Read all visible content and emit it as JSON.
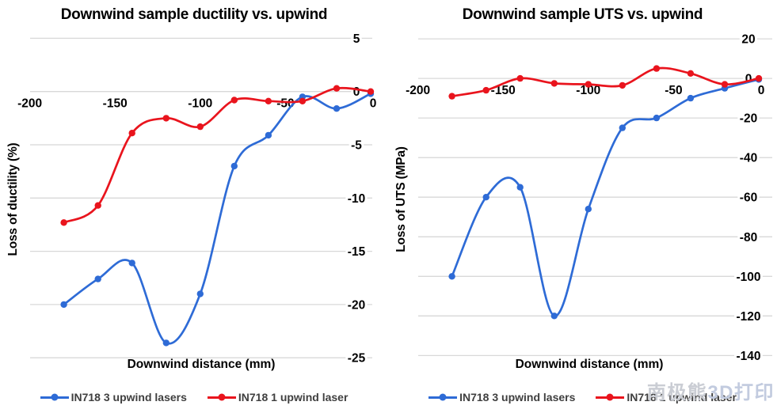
{
  "colors": {
    "series_blue": "#2e6bd6",
    "series_red": "#e9141d",
    "grid": "#d8d8d8",
    "tick_text": "#000000",
    "legend_text": "#3f3f3f",
    "watermark_cjk": "#cacdd4",
    "watermark_latin": "#c2cbdf"
  },
  "watermark": {
    "text_cjk": "南极熊",
    "text_latin": "3D打印"
  },
  "chart_data": [
    {
      "type": "line",
      "title": "Downwind sample ductility vs. upwind",
      "xlabel": "Downwind distance (mm)",
      "ylabel": "Loss of ductility (%)",
      "x_ticks": [
        -200,
        -150,
        -100,
        -50,
        0
      ],
      "y_ticks": [
        5,
        0,
        -5,
        -10,
        -15,
        -20,
        -25
      ],
      "x_range": [
        -200,
        0
      ],
      "ylim": [
        -25,
        5
      ],
      "grid": true,
      "legend_position": "bottom",
      "marker": "circle",
      "smooth": true,
      "x": [
        -180,
        -160,
        -140,
        -120,
        -100,
        -80,
        -60,
        -40,
        -20,
        0
      ],
      "series": [
        {
          "name": "IN718 3 upwind lasers",
          "color_key": "series_blue",
          "values": [
            -20,
            -17.6,
            -16.1,
            -23.6,
            -19,
            -7,
            -4.1,
            -0.5,
            -1.6,
            -0.2
          ]
        },
        {
          "name": "IN718 1 upwind laser",
          "color_key": "series_red",
          "values": [
            -12.3,
            -10.7,
            -3.9,
            -2.5,
            -3.3,
            -0.8,
            -0.9,
            -0.9,
            0.3,
            0
          ]
        }
      ]
    },
    {
      "type": "line",
      "title": "Downwind sample UTS vs. upwind",
      "xlabel": "Downwind distance (mm)",
      "ylabel": "Loss of UTS (MPa)",
      "x_ticks": [
        -200,
        -150,
        -100,
        -50,
        0
      ],
      "y_ticks": [
        20,
        0,
        -20,
        -40,
        -60,
        -80,
        -100,
        -120,
        -140
      ],
      "x_range": [
        -200,
        0
      ],
      "ylim": [
        -140,
        20
      ],
      "grid": true,
      "legend_position": "bottom",
      "marker": "circle",
      "smooth": true,
      "x": [
        -180,
        -160,
        -140,
        -120,
        -100,
        -80,
        -60,
        -40,
        -20,
        0
      ],
      "series": [
        {
          "name": "IN718 3 upwind lasers",
          "color_key": "series_blue",
          "values": [
            -100,
            -60,
            -55,
            -120,
            -66,
            -25,
            -20,
            -10,
            -5,
            -0.5
          ]
        },
        {
          "name": "IN718 1 upwind laser",
          "color_key": "series_red",
          "values": [
            -9,
            -6,
            0,
            -2.5,
            -3,
            -3.5,
            5,
            2.5,
            -3,
            0
          ]
        }
      ]
    }
  ]
}
